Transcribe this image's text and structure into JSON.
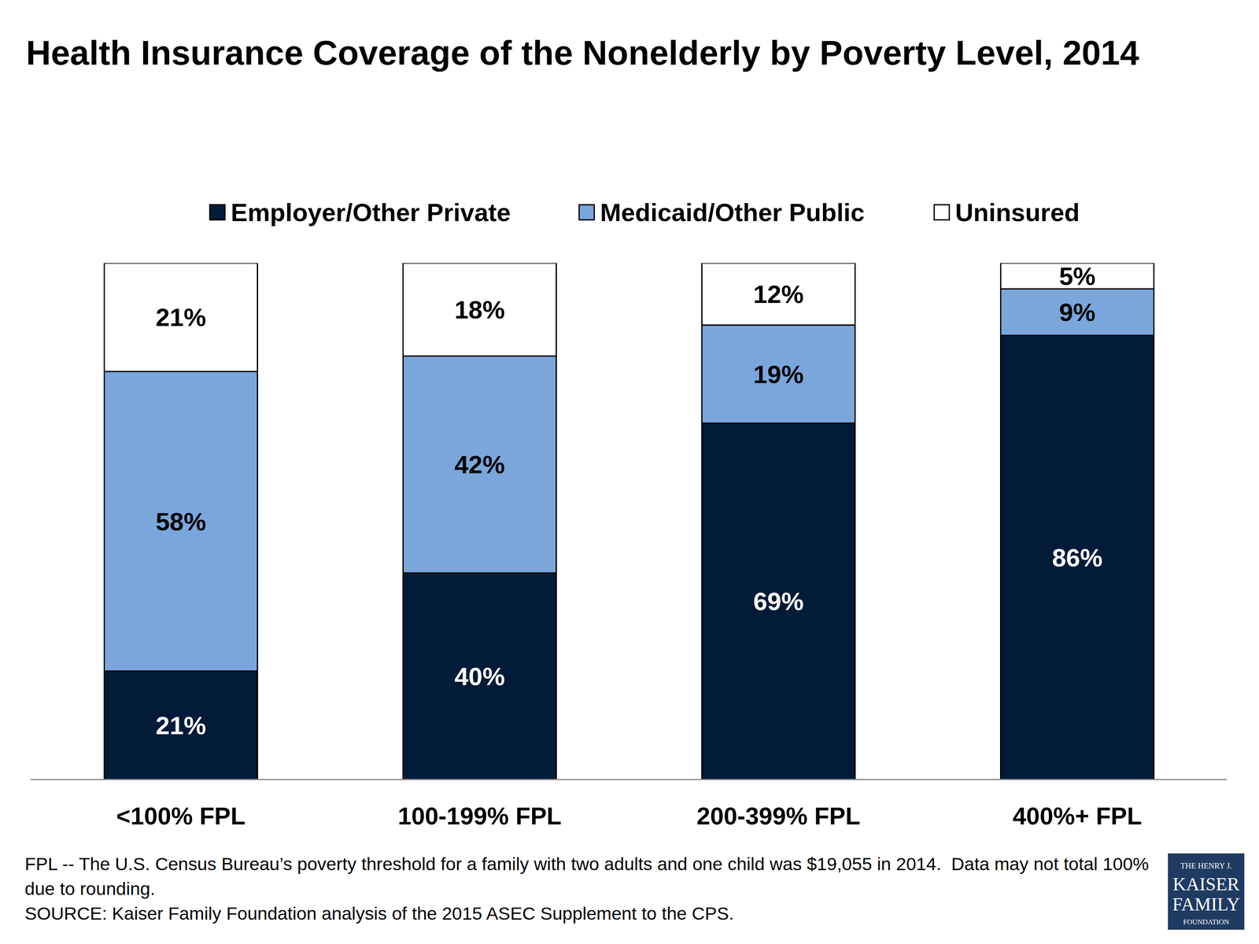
{
  "chart_data": {
    "type": "bar",
    "stacked": true,
    "data_labels": true,
    "tick_labels": "x",
    "grid": false,
    "legend": "top",
    "title": "Health Insurance Coverage of the Nonelderly by Poverty Level, 2014",
    "categories": [
      "<100% FPL",
      "100-199% FPL",
      "200-399% FPL",
      "400%+ FPL"
    ],
    "ylim": [
      0,
      100
    ],
    "series": [
      {
        "name": "Employer/Other Private",
        "color": "#021b38",
        "values": [
          21,
          40,
          69,
          86
        ],
        "value_labels": [
          "21%",
          "40%",
          "69%",
          "86%"
        ]
      },
      {
        "name": "Medicaid/Other Public",
        "color": "#7aa6dc",
        "values": [
          58,
          42,
          19,
          9
        ],
        "value_labels": [
          "58%",
          "42%",
          "19%",
          "9%"
        ]
      },
      {
        "name": "Uninsured",
        "color": "#ffffff",
        "values": [
          21,
          18,
          12,
          5
        ],
        "value_labels": [
          "21%",
          "18%",
          "12%",
          "5%"
        ]
      }
    ],
    "notes": [
      "FPL -- The U.S. Census Bureau’s poverty threshold for a family with two adults and one child was $19,055 in 2014.  Data may not total 100% due to rounding.",
      "SOURCE: Kaiser Family Foundation analysis of the 2015 ASEC Supplement to the CPS."
    ],
    "logo": [
      "THE HENRY J.",
      "KAISER",
      "FAMILY",
      "FOUNDATION"
    ]
  }
}
